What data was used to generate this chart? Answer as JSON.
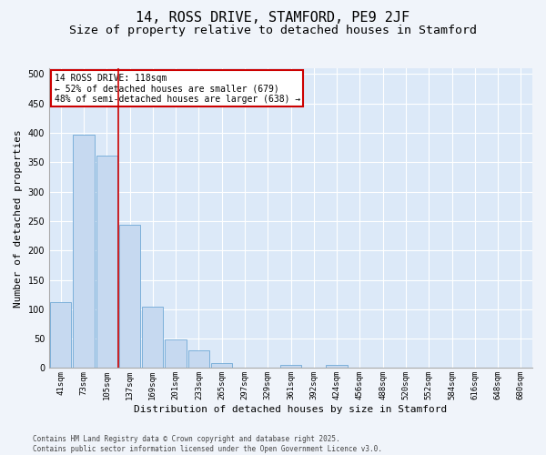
{
  "title": "14, ROSS DRIVE, STAMFORD, PE9 2JF",
  "subtitle": "Size of property relative to detached houses in Stamford",
  "xlabel": "Distribution of detached houses by size in Stamford",
  "ylabel": "Number of detached properties",
  "categories": [
    "41sqm",
    "73sqm",
    "105sqm",
    "137sqm",
    "169sqm",
    "201sqm",
    "233sqm",
    "265sqm",
    "297sqm",
    "329sqm",
    "361sqm",
    "392sqm",
    "424sqm",
    "456sqm",
    "488sqm",
    "520sqm",
    "552sqm",
    "584sqm",
    "616sqm",
    "648sqm",
    "680sqm"
  ],
  "values": [
    112,
    397,
    362,
    243,
    105,
    49,
    30,
    8,
    0,
    0,
    6,
    0,
    5,
    1,
    0,
    0,
    0,
    0,
    0,
    0,
    1
  ],
  "bar_color": "#c6d9f0",
  "bar_edge_color": "#6fa8d6",
  "bg_color": "#dce9f8",
  "grid_color": "#ffffff",
  "fig_bg_color": "#f0f4fa",
  "vline_x": 2.5,
  "vline_color": "#cc0000",
  "annotation_line1": "14 ROSS DRIVE: 118sqm",
  "annotation_line2": "← 52% of detached houses are smaller (679)",
  "annotation_line3": "48% of semi-detached houses are larger (638) →",
  "annotation_box_color": "#ffffff",
  "annotation_box_edge": "#cc0000",
  "footer": "Contains HM Land Registry data © Crown copyright and database right 2025.\nContains public sector information licensed under the Open Government Licence v3.0.",
  "ylim": [
    0,
    510
  ],
  "yticks": [
    0,
    50,
    100,
    150,
    200,
    250,
    300,
    350,
    400,
    450,
    500
  ],
  "title_fontsize": 11,
  "subtitle_fontsize": 9.5,
  "tick_fontsize": 6.5,
  "ylabel_fontsize": 8,
  "xlabel_fontsize": 8,
  "annotation_fontsize": 7,
  "footer_fontsize": 5.5
}
